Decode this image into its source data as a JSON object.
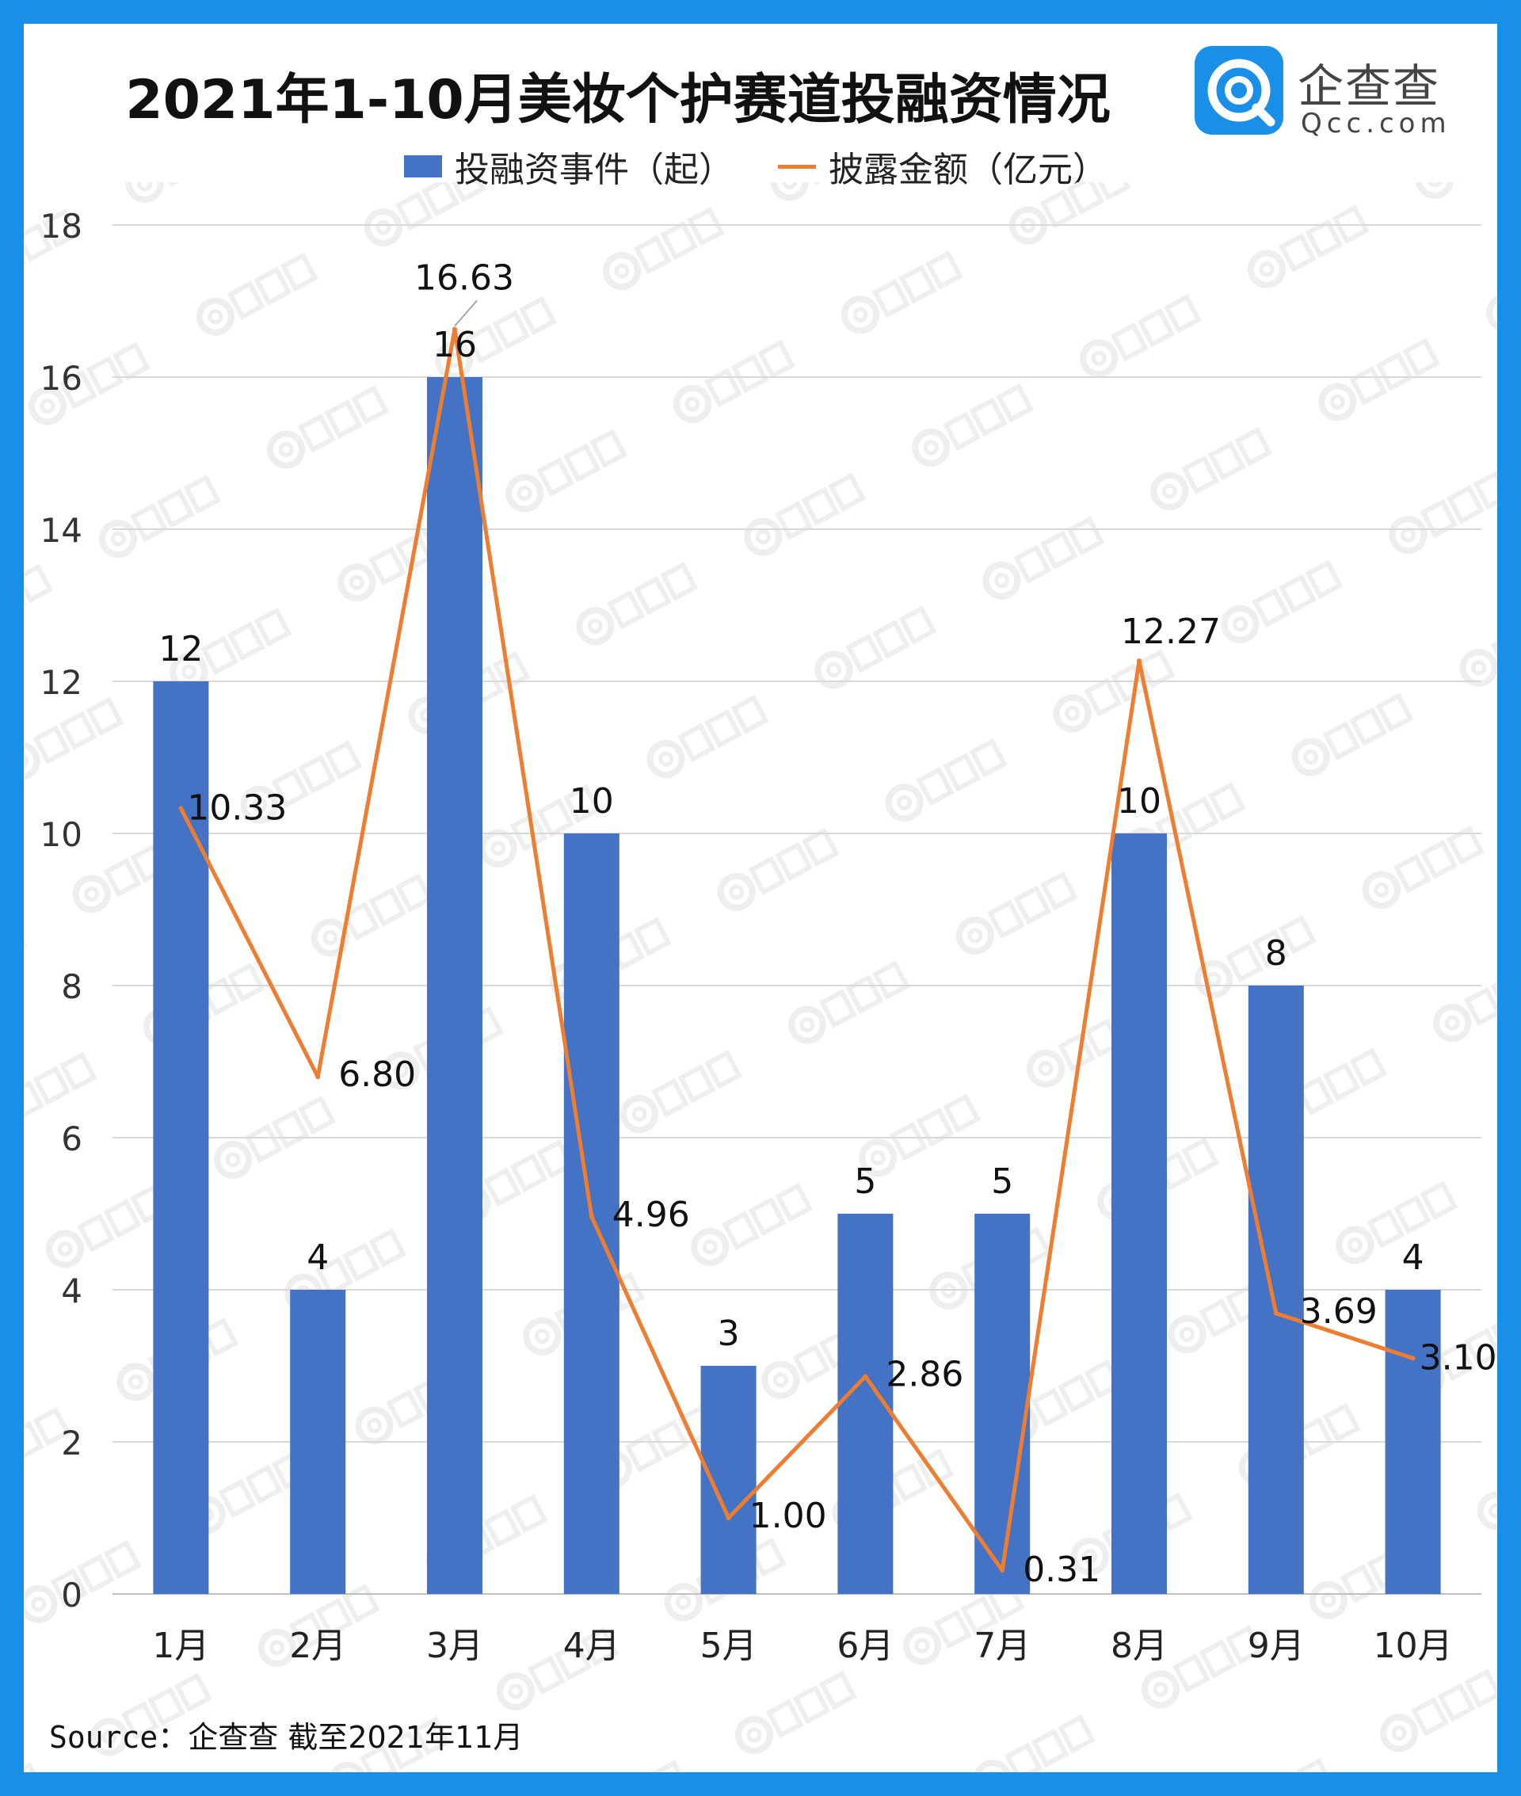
{
  "title": "2021年1-10月美妆个护赛道投融资情况",
  "logo": {
    "name": "企查查",
    "domain": "Qcc.com"
  },
  "source_label": "Source：",
  "source_text": "企查查 截至2021年11月",
  "chart_data": {
    "type": "bar",
    "categories": [
      "1月",
      "2月",
      "3月",
      "4月",
      "5月",
      "6月",
      "7月",
      "8月",
      "9月",
      "10月"
    ],
    "series": [
      {
        "name": "投融资事件（起）",
        "type": "bar",
        "color": "#4472c4",
        "values": [
          12,
          4,
          16,
          10,
          3,
          5,
          5,
          10,
          8,
          4
        ],
        "labels": [
          "12",
          "4",
          "16",
          "10",
          "3",
          "5",
          "5",
          "10",
          "8",
          "4"
        ]
      },
      {
        "name": "披露金额（亿元）",
        "type": "line",
        "color": "#ed7d31",
        "values": [
          10.33,
          6.8,
          16.63,
          4.96,
          1.0,
          2.86,
          0.31,
          12.27,
          3.69,
          3.1
        ],
        "labels": [
          "10.33",
          "6.80",
          "16.63",
          "4.96",
          "1.00",
          "2.86",
          "0.31",
          "12.27",
          "3.69",
          "3.10"
        ]
      }
    ],
    "ylim": [
      0,
      18
    ],
    "yticks": [
      "0",
      "2",
      "4",
      "6",
      "8",
      "10",
      "12",
      "14",
      "16",
      "18"
    ],
    "grid": true,
    "legend": "top-center"
  }
}
